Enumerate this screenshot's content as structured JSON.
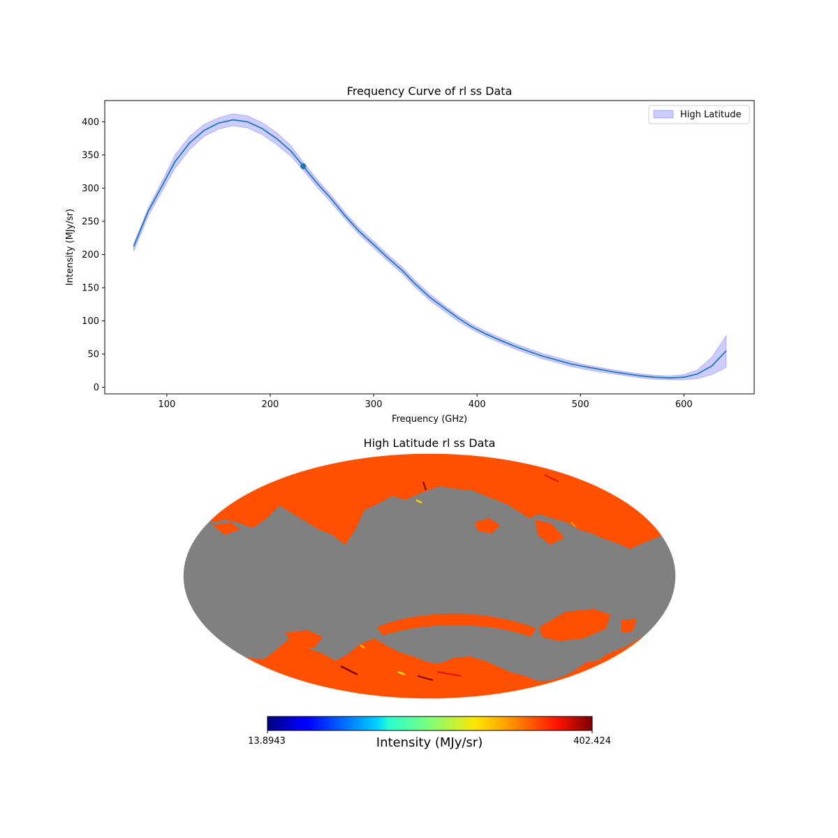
{
  "chart_data": [
    {
      "type": "line",
      "title": "Frequency Curve of rl ss Data",
      "xlabel": "Frequency (GHz)",
      "ylabel": "Intensity (MJy/sr)",
      "xlim": [
        40,
        668
      ],
      "ylim": [
        -10,
        432
      ],
      "xticks": [
        100,
        200,
        300,
        400,
        500,
        600
      ],
      "yticks": [
        0,
        50,
        100,
        150,
        200,
        250,
        300,
        350,
        400
      ],
      "legend": {
        "position": "top-right",
        "entries": [
          "High Latitude"
        ]
      },
      "grid": false,
      "colors": {
        "line": "#1f77b4",
        "band": "#0000ff"
      },
      "series": [
        {
          "x": [
            68,
            82,
            95,
            108,
            122,
            136,
            150,
            164,
            178,
            192,
            206,
            220,
            232,
            245,
            259,
            272,
            286,
            300,
            313,
            327,
            340,
            354,
            368,
            381,
            395,
            409,
            422,
            436,
            450,
            463,
            477,
            491,
            504,
            518,
            532,
            545,
            559,
            572,
            586,
            600,
            613,
            627,
            641
          ],
          "values": [
            212,
            265,
            302,
            340,
            368,
            387,
            398,
            403,
            400,
            390,
            375,
            356,
            333,
            308,
            284,
            259,
            235,
            215,
            196,
            177,
            156,
            136,
            120,
            105,
            91,
            80,
            71,
            62,
            54,
            47,
            41,
            35,
            31,
            27,
            23,
            20,
            17,
            15,
            14,
            15,
            20,
            32,
            55
          ],
          "upper": [
            216,
            270,
            309,
            350,
            378,
            396,
            406,
            412,
            409,
            399,
            384,
            364,
            339,
            314,
            289,
            264,
            240,
            220,
            201,
            182,
            161,
            141,
            124,
            109,
            95,
            84,
            75,
            66,
            58,
            51,
            45,
            39,
            34,
            30,
            26,
            23,
            20,
            18,
            17,
            19,
            26,
            45,
            78
          ]
        }
      ],
      "lower_band": [
        205,
        258,
        294,
        330,
        358,
        378,
        389,
        394,
        391,
        381,
        366,
        348,
        327,
        302,
        278,
        254,
        230,
        210,
        191,
        172,
        151,
        131,
        115,
        100,
        87,
        76,
        67,
        58,
        50,
        43,
        37,
        31,
        27,
        23,
        20,
        17,
        14,
        12,
        11,
        11,
        13,
        19,
        30
      ],
      "marker": {
        "x": 232,
        "y": 333
      }
    },
    {
      "type": "heatmap",
      "title": "High Latitude rl ss Data",
      "projection": "mollweide",
      "colorbar": {
        "min_label": "13.8943",
        "max_label": "402.424",
        "label": "Intensity (MJy/sr)",
        "colormap": "jet"
      },
      "colors": {
        "masked": "#808080",
        "dominant": "#ff4f00"
      }
    }
  ]
}
